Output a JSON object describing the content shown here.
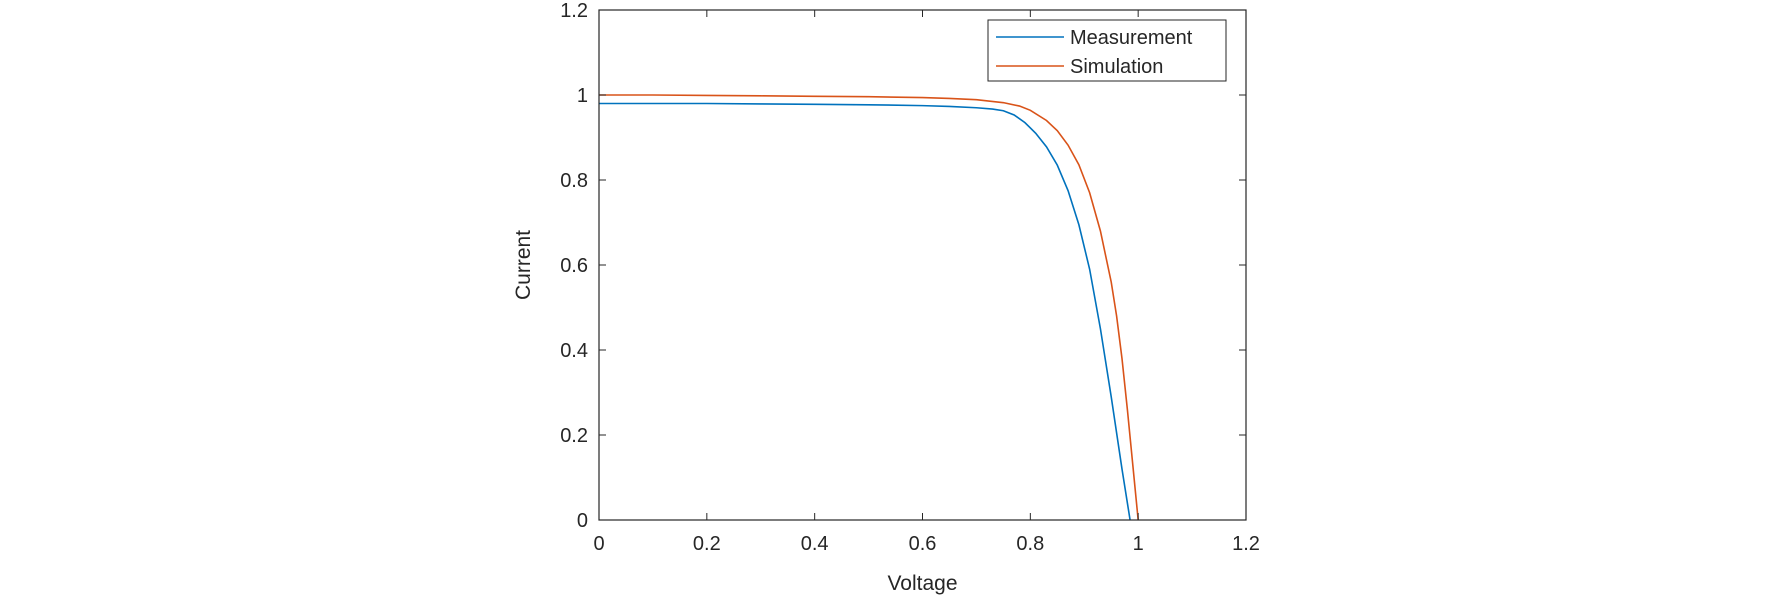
{
  "chart_data": {
    "type": "line",
    "title": "",
    "xlabel": "Voltage",
    "ylabel": "Current",
    "xlim": [
      0,
      1.2
    ],
    "ylim": [
      0,
      1.2
    ],
    "xticks": [
      "0",
      "0.2",
      "0.4",
      "0.6",
      "0.8",
      "1",
      "1.2"
    ],
    "yticks": [
      "0",
      "0.2",
      "0.4",
      "0.6",
      "0.8",
      "1",
      "1.2"
    ],
    "grid": false,
    "legend_position": "top-right",
    "series": [
      {
        "name": "Measurement",
        "color": "#0072BD",
        "x": [
          0,
          0.1,
          0.2,
          0.3,
          0.4,
          0.5,
          0.6,
          0.65,
          0.7,
          0.73,
          0.75,
          0.77,
          0.79,
          0.81,
          0.83,
          0.85,
          0.87,
          0.89,
          0.91,
          0.93,
          0.95,
          0.97,
          0.985
        ],
        "y": [
          0.98,
          0.98,
          0.98,
          0.979,
          0.978,
          0.977,
          0.975,
          0.973,
          0.97,
          0.967,
          0.963,
          0.953,
          0.935,
          0.91,
          0.878,
          0.835,
          0.775,
          0.695,
          0.59,
          0.45,
          0.29,
          0.12,
          0.0
        ]
      },
      {
        "name": "Simulation",
        "color": "#D95319",
        "x": [
          0,
          0.1,
          0.2,
          0.3,
          0.4,
          0.5,
          0.6,
          0.65,
          0.7,
          0.75,
          0.78,
          0.8,
          0.83,
          0.85,
          0.87,
          0.89,
          0.91,
          0.93,
          0.95,
          0.96,
          0.97,
          0.98,
          0.99,
          1.0
        ],
        "y": [
          1.0,
          1.0,
          0.999,
          0.998,
          0.997,
          0.996,
          0.994,
          0.992,
          0.989,
          0.982,
          0.974,
          0.964,
          0.94,
          0.916,
          0.882,
          0.836,
          0.77,
          0.68,
          0.56,
          0.48,
          0.38,
          0.26,
          0.13,
          0.0
        ]
      }
    ]
  }
}
